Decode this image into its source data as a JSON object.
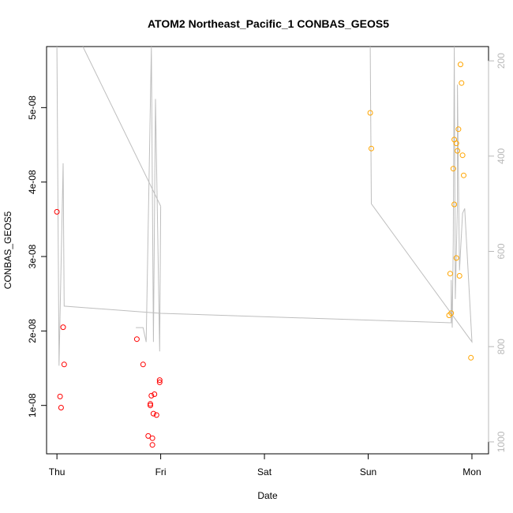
{
  "chart_data": {
    "type": "scatter",
    "title": "ATOM2 Northeast_Pacific_1 CONBAS_GEOS5",
    "xlabel": "Date",
    "ylabel": "CONBAS_GEOS5",
    "x_ticks": [
      {
        "label": "Thu",
        "value": 0
      },
      {
        "label": "Fri",
        "value": 1
      },
      {
        "label": "Sat",
        "value": 2
      },
      {
        "label": "Sun",
        "value": 3
      },
      {
        "label": "Mon",
        "value": 4
      }
    ],
    "y_ticks": [
      {
        "label": "1e-08",
        "value": 1e-08
      },
      {
        "label": "2e-08",
        "value": 2e-08
      },
      {
        "label": "3e-08",
        "value": 3e-08
      },
      {
        "label": "4e-08",
        "value": 4e-08
      },
      {
        "label": "5e-08",
        "value": 5e-08
      }
    ],
    "y2_ticks": [
      {
        "label": "200",
        "value": 200
      },
      {
        "label": "400",
        "value": 400
      },
      {
        "label": "600",
        "value": 600
      },
      {
        "label": "800",
        "value": 800
      },
      {
        "label": "1000",
        "value": 1000
      }
    ],
    "xlim": [
      -0.1,
      4.16
    ],
    "ylim": [
      3.5e-09,
      5.82e-08
    ],
    "y2lim": [
      1025,
      170
    ],
    "colors": {
      "series_red": "#ff0000",
      "series_orange": "#ffa500",
      "pressure_line": "#bebebe",
      "right_axis": "#b8b8b8"
    },
    "series": [
      {
        "color_key": "series_red",
        "points": [
          {
            "x": 0.0,
            "y": 3.6e-08
          },
          {
            "x": 0.03,
            "y": 1.12e-08
          },
          {
            "x": 0.04,
            "y": 9.7e-09
          },
          {
            "x": 0.06,
            "y": 2.05e-08
          },
          {
            "x": 0.07,
            "y": 1.55e-08
          },
          {
            "x": 0.77,
            "y": 1.89e-08
          },
          {
            "x": 0.83,
            "y": 1.55e-08
          },
          {
            "x": 0.88,
            "y": 5.9e-09
          },
          {
            "x": 0.9,
            "y": 1.02e-08
          },
          {
            "x": 0.9,
            "y": 1e-08
          },
          {
            "x": 0.91,
            "y": 1.13e-08
          },
          {
            "x": 0.92,
            "y": 5.6e-09
          },
          {
            "x": 0.93,
            "y": 8.9e-09
          },
          {
            "x": 0.92,
            "y": 4.7e-09
          },
          {
            "x": 0.94,
            "y": 1.15e-08
          },
          {
            "x": 0.96,
            "y": 8.7e-09
          },
          {
            "x": 0.99,
            "y": 1.34e-08
          },
          {
            "x": 0.99,
            "y": 1.31e-08
          }
        ]
      },
      {
        "color_key": "series_orange",
        "points": [
          {
            "x": 3.02,
            "y": 4.93e-08
          },
          {
            "x": 3.03,
            "y": 4.45e-08
          },
          {
            "x": 3.78,
            "y": 2.21e-08
          },
          {
            "x": 3.79,
            "y": 2.77e-08
          },
          {
            "x": 3.8,
            "y": 2.24e-08
          },
          {
            "x": 3.82,
            "y": 4.18e-08
          },
          {
            "x": 3.83,
            "y": 4.57e-08
          },
          {
            "x": 3.83,
            "y": 3.7e-08
          },
          {
            "x": 3.85,
            "y": 2.98e-08
          },
          {
            "x": 3.85,
            "y": 4.52e-08
          },
          {
            "x": 3.86,
            "y": 4.42e-08
          },
          {
            "x": 3.87,
            "y": 4.71e-08
          },
          {
            "x": 3.88,
            "y": 2.74e-08
          },
          {
            "x": 3.89,
            "y": 5.58e-08
          },
          {
            "x": 3.9,
            "y": 5.33e-08
          },
          {
            "x": 3.91,
            "y": 4.36e-08
          },
          {
            "x": 3.92,
            "y": 4.09e-08
          },
          {
            "x": 3.99,
            "y": 1.64e-08
          }
        ]
      }
    ],
    "pressure_line": {
      "color_key": "pressure_line",
      "y_axis": "right",
      "points": [
        {
          "x": 0.0,
          "y": 170
        },
        {
          "x": 0.02,
          "y": 840
        },
        {
          "x": 0.06,
          "y": 415
        },
        {
          "x": 0.07,
          "y": 715
        },
        {
          "x": 1.0,
          "y": 730
        },
        {
          "x": 3.8,
          "y": 750
        },
        {
          "x": 3.8,
          "y": 660
        },
        {
          "x": 3.81,
          "y": 760
        },
        {
          "x": 3.82,
          "y": 580
        },
        {
          "x": 3.83,
          "y": 170
        },
        {
          "x": 3.84,
          "y": 700
        },
        {
          "x": 3.86,
          "y": 500
        },
        {
          "x": 3.86,
          "y": 250
        },
        {
          "x": 3.88,
          "y": 640
        },
        {
          "x": 3.91,
          "y": 520
        },
        {
          "x": 3.93,
          "y": 510
        },
        {
          "x": 4.0,
          "y": 790
        },
        {
          "x": 3.03,
          "y": 500
        },
        {
          "x": 3.02,
          "y": 170
        }
      ],
      "segments": [
        [
          {
            "x": 0.25,
            "y": 170
          },
          {
            "x": 1.0,
            "y": 505
          }
        ],
        [
          {
            "x": 0.76,
            "y": 760
          },
          {
            "x": 0.83,
            "y": 760
          },
          {
            "x": 0.86,
            "y": 790
          }
        ],
        [
          {
            "x": 0.86,
            "y": 790
          },
          {
            "x": 0.91,
            "y": 170
          },
          {
            "x": 0.93,
            "y": 790
          },
          {
            "x": 0.95,
            "y": 280
          },
          {
            "x": 0.99,
            "y": 810
          },
          {
            "x": 1.0,
            "y": 505
          }
        ]
      ]
    }
  }
}
